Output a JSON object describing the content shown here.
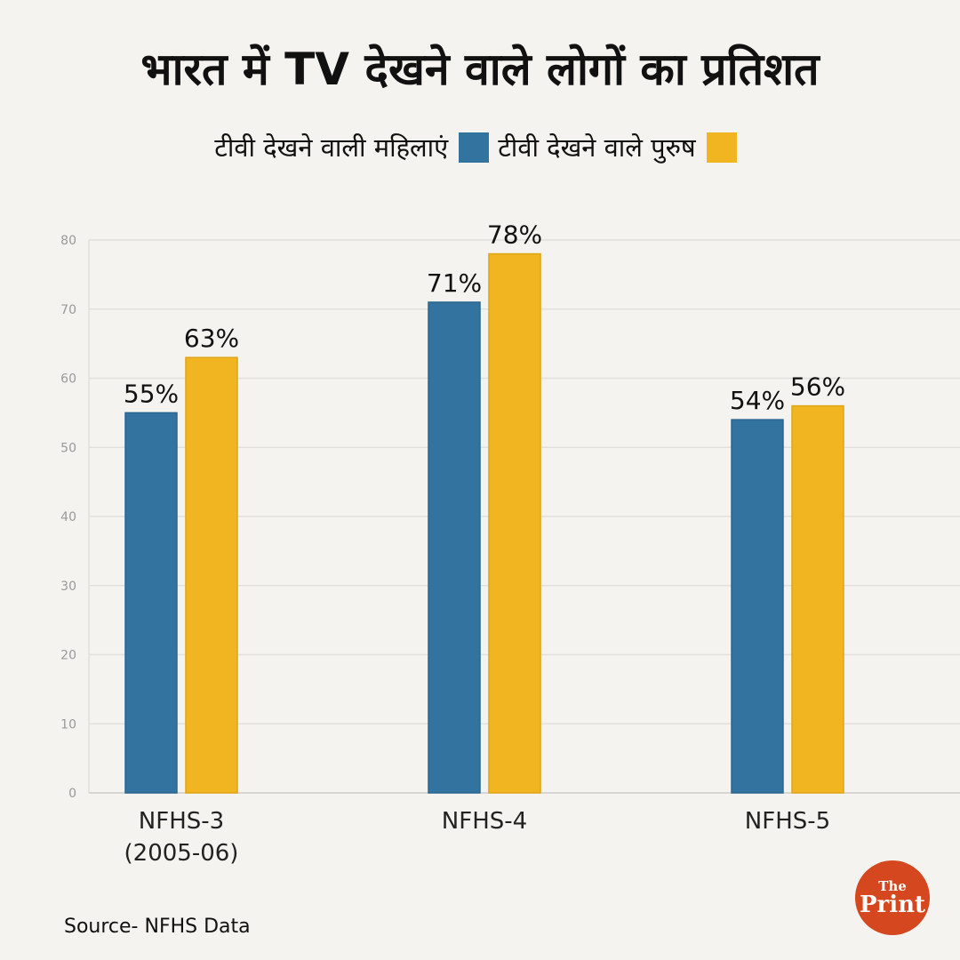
{
  "title": "भारत में TV देखने वाले लोगों का प्रतिशत",
  "source": "Source- NFHS Data",
  "logo": {
    "top": "The",
    "bottom": "Print"
  },
  "colors": {
    "women": "#3373a0",
    "men": "#f0b521",
    "grid": "#e2e0dc",
    "axis": "#cfcdc8"
  },
  "chart_data": {
    "type": "bar",
    "categories": [
      [
        "NFHS-3",
        "(2005-06)"
      ],
      [
        "NFHS-4"
      ],
      [
        "NFHS-5"
      ]
    ],
    "series": [
      {
        "name": "टीवी देखने वाली महिलाएं",
        "values": [
          55,
          71,
          54
        ],
        "labels": [
          "55%",
          "71%",
          "54%"
        ]
      },
      {
        "name": "टीवी देखने वाले पुरुष",
        "values": [
          63,
          78,
          56
        ],
        "labels": [
          "63%",
          "78%",
          "56%"
        ]
      }
    ],
    "ylim": [
      0,
      80
    ],
    "yticks": [
      0,
      10,
      20,
      30,
      40,
      50,
      60,
      70,
      80
    ],
    "grid": true,
    "legend": "top-center"
  }
}
